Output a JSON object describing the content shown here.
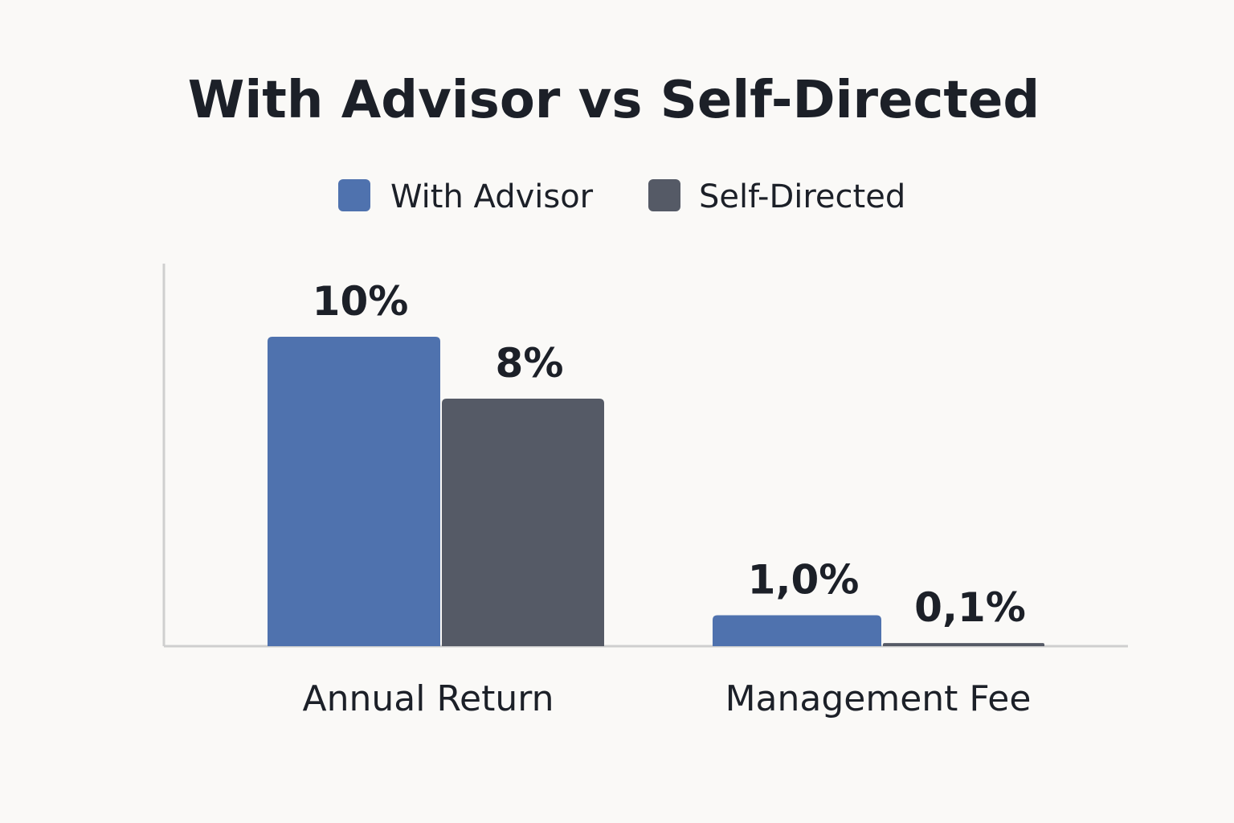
{
  "chart_data": {
    "type": "bar",
    "title": "With Advisor vs Self-Directed",
    "categories": [
      "Annual Return",
      "Management Fee"
    ],
    "series": [
      {
        "name": "With Advisor",
        "color": "#4f72ae",
        "values": [
          10,
          1.0
        ],
        "labels": [
          "10%",
          "1,0%"
        ]
      },
      {
        "name": "Self-Directed",
        "color": "#555a66",
        "values": [
          8,
          0.1
        ],
        "labels": [
          "8%",
          "0,1%"
        ]
      }
    ],
    "xlabel": "",
    "ylabel": "",
    "ylim": [
      0,
      11
    ],
    "grid": false,
    "legend_position": "top-center"
  }
}
